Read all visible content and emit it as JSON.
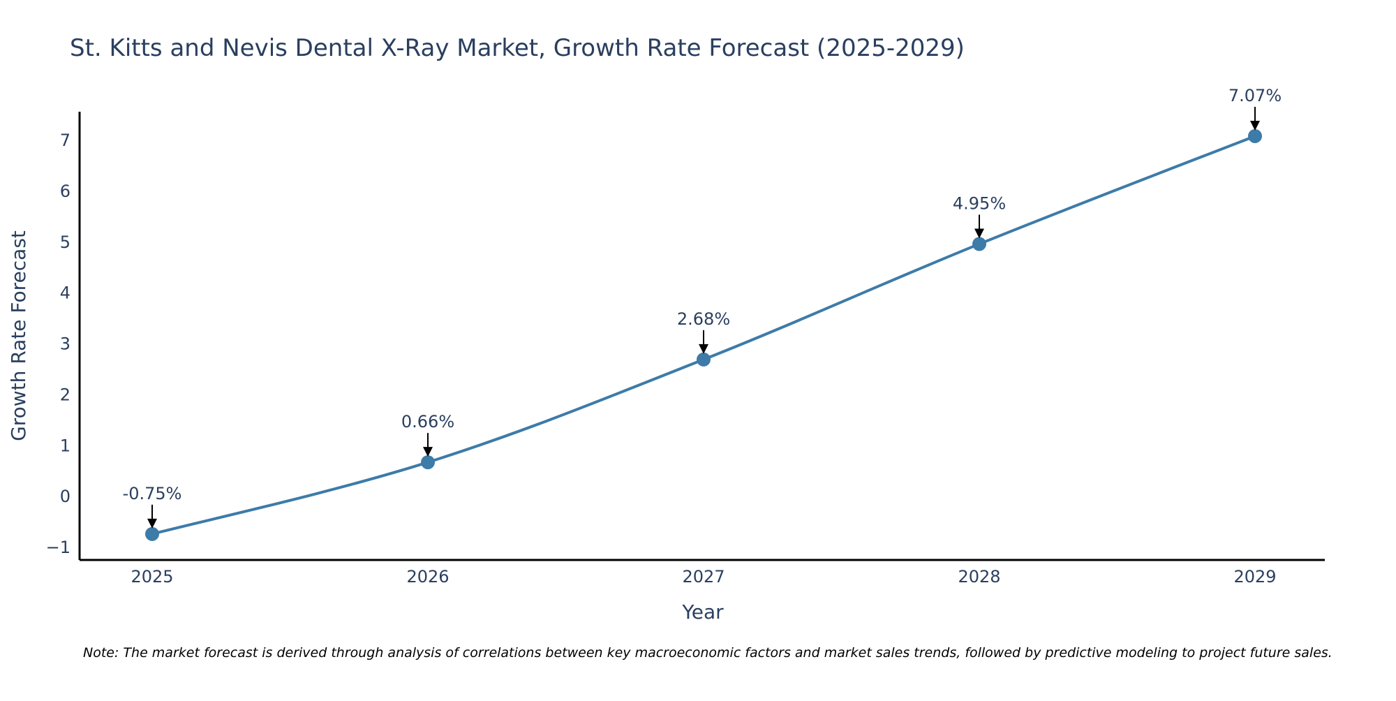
{
  "chart_data": {
    "type": "line",
    "title": "St. Kitts and Nevis Dental X-Ray Market, Growth Rate Forecast (2025-2029)",
    "xlabel": "Year",
    "ylabel": "Growth Rate Forecast",
    "categories": [
      "2025",
      "2026",
      "2027",
      "2028",
      "2029"
    ],
    "values": [
      -0.75,
      0.66,
      2.68,
      4.95,
      7.07
    ],
    "annotations": [
      "-0.75%",
      "0.66%",
      "2.68%",
      "4.95%",
      "7.07%"
    ],
    "y_ticks": [
      -1,
      0,
      1,
      2,
      3,
      4,
      5,
      6,
      7
    ],
    "y_tick_labels": [
      "−1",
      "0",
      "1",
      "2",
      "3",
      "4",
      "5",
      "6",
      "7"
    ],
    "ylim": [
      -1.26,
      7.55
    ],
    "line_color": "#3d7ba8",
    "marker_color": "#3d7ba8",
    "note": "Note: The market forecast is derived through analysis of correlations between key macroeconomic factors and market sales trends, followed by predictive modeling to project future sales."
  }
}
